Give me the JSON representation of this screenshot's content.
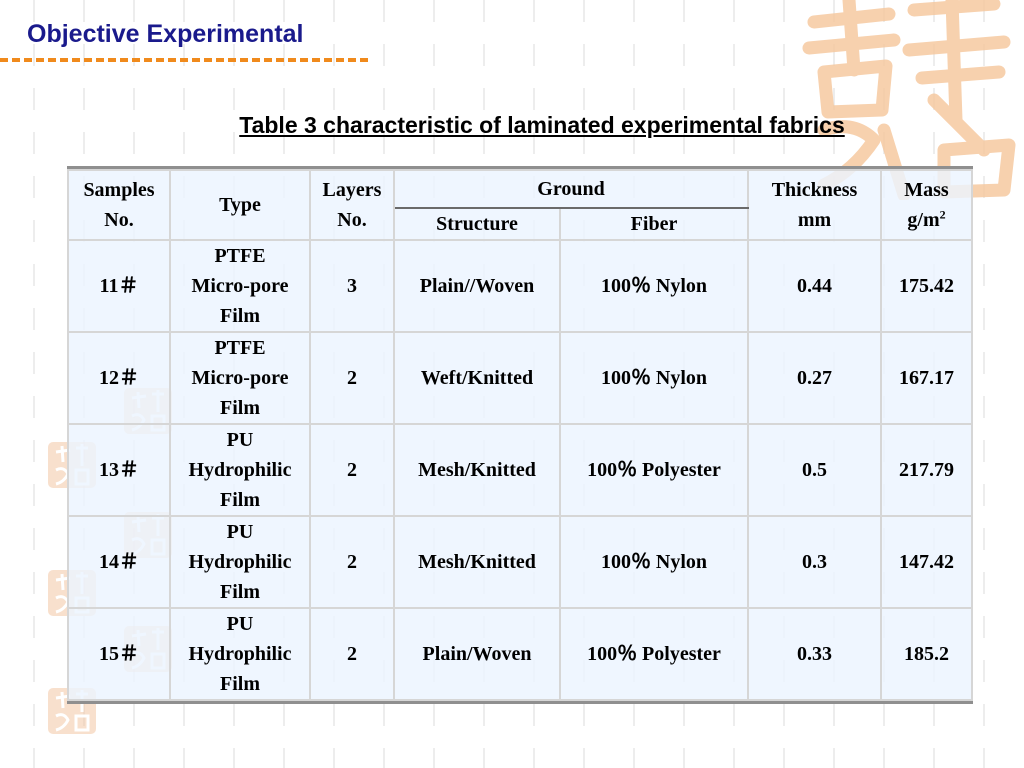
{
  "slide": {
    "title": "Objective Experimental",
    "table_caption": "Table 3 characteristic of laminated experimental fabrics"
  },
  "colors": {
    "title": "#1a1a8c",
    "accent_rule": "#f08a1c",
    "table_border": "#8f8f8f",
    "cell_fill": "#ebf4ff"
  },
  "table": {
    "headers": {
      "samples_line1": "Samples",
      "samples_line2": "No.",
      "type": "Type",
      "layers_line1": "Layers",
      "layers_line2": "No.",
      "ground": "Ground",
      "structure": "Structure",
      "fiber": "Fiber",
      "thickness_line1": "Thickness",
      "thickness_line2": "mm",
      "mass_line1": "Mass",
      "mass_line2": "g/m",
      "mass_sup": "2"
    },
    "rows": [
      {
        "sample": "11＃",
        "type_l1": "PTFE",
        "type_l2": "Micro-pore",
        "type_l3": "Film",
        "layers": "3",
        "structure": "Plain//Woven",
        "fiber": "100％  Nylon",
        "thickness": "0.44",
        "mass": "175.42"
      },
      {
        "sample": "12＃",
        "type_l1": "PTFE",
        "type_l2": "Micro-pore",
        "type_l3": "Film",
        "layers": "2",
        "structure": "Weft/Knitted",
        "fiber": "100％  Nylon",
        "thickness": "0.27",
        "mass": "167.17"
      },
      {
        "sample": "13＃",
        "type_l1": "PU",
        "type_l2": "Hydrophilic",
        "type_l3": "Film",
        "layers": "2",
        "structure": "Mesh/Knitted",
        "fiber": "100％ Polyester",
        "thickness": "0.5",
        "mass": "217.79"
      },
      {
        "sample": "14＃",
        "type_l1": "PU",
        "type_l2": "Hydrophilic",
        "type_l3": "Film",
        "layers": "2",
        "structure": "Mesh/Knitted",
        "fiber": "100％  Nylon",
        "thickness": "0.3",
        "mass": "147.42"
      },
      {
        "sample": "15＃",
        "type_l1": "PU",
        "type_l2": "Hydrophilic",
        "type_l3": "Film",
        "layers": "2",
        "structure": "Plain/Woven",
        "fiber": "100％ Polyester",
        "thickness": "0.33",
        "mass": "185.2"
      }
    ]
  }
}
